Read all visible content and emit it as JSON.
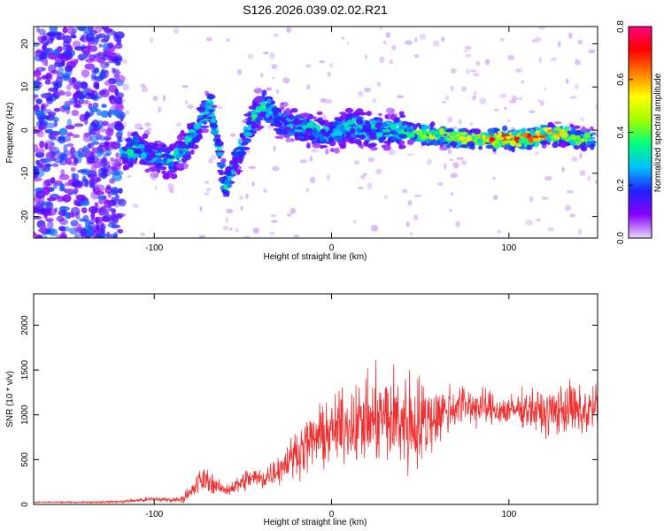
{
  "title": "S126.2026.039.02.02.R21",
  "colors": {
    "snr_line": "#f03030",
    "axis": "#000000",
    "background": "#ffffff"
  },
  "chart_data": [
    {
      "type": "heatmap",
      "name": "spectrogram",
      "title": "S126.2026.039.02.02.R21",
      "xlabel": "Height of straight line (km)",
      "ylabel": "Frequency (Hz)",
      "xlim": [
        -168,
        150
      ],
      "ylim": [
        -25,
        24
      ],
      "xticks": [
        -100,
        0,
        100
      ],
      "yticks": [
        -20,
        -10,
        0,
        10,
        20
      ],
      "colorbar": {
        "label": "Normalized spectral amplitude",
        "range": [
          0.0,
          0.8
        ],
        "ticks": [
          0.0,
          0.2,
          0.4,
          0.6,
          0.8
        ],
        "colormap": [
          "#e8d8f8",
          "#8800ff",
          "#2020ff",
          "#00c0ff",
          "#00ff80",
          "#a0ff00",
          "#ffff00",
          "#ff8000",
          "#ff0000",
          "#ff0080"
        ]
      },
      "ridge": [
        {
          "x": -118,
          "y": -6,
          "amp": 0.35
        },
        {
          "x": -110,
          "y": -4,
          "amp": 0.35
        },
        {
          "x": -100,
          "y": -6,
          "amp": 0.3
        },
        {
          "x": -90,
          "y": -7,
          "amp": 0.35
        },
        {
          "x": -82,
          "y": -4,
          "amp": 0.35
        },
        {
          "x": -75,
          "y": 1,
          "amp": 0.35
        },
        {
          "x": -68,
          "y": 6,
          "amp": 0.4
        },
        {
          "x": -60,
          "y": -13,
          "amp": 0.35
        },
        {
          "x": -52,
          "y": -5,
          "amp": 0.35
        },
        {
          "x": -45,
          "y": 2,
          "amp": 0.35
        },
        {
          "x": -38,
          "y": 6,
          "amp": 0.35
        },
        {
          "x": -30,
          "y": 2,
          "amp": 0.3
        },
        {
          "x": -20,
          "y": 1,
          "amp": 0.3
        },
        {
          "x": -10,
          "y": 0,
          "amp": 0.35
        },
        {
          "x": 0,
          "y": -1,
          "amp": 0.3
        },
        {
          "x": 10,
          "y": 1,
          "amp": 0.35
        },
        {
          "x": 20,
          "y": 0,
          "amp": 0.35
        },
        {
          "x": 30,
          "y": 0,
          "amp": 0.35
        },
        {
          "x": 40,
          "y": 0,
          "amp": 0.4
        },
        {
          "x": 50,
          "y": -1,
          "amp": 0.5
        },
        {
          "x": 60,
          "y": -1,
          "amp": 0.55
        },
        {
          "x": 70,
          "y": -2,
          "amp": 0.55
        },
        {
          "x": 80,
          "y": -2,
          "amp": 0.6
        },
        {
          "x": 90,
          "y": -2,
          "amp": 0.7
        },
        {
          "x": 100,
          "y": -2,
          "amp": 0.8
        },
        {
          "x": 110,
          "y": -2,
          "amp": 0.7
        },
        {
          "x": 120,
          "y": -1,
          "amp": 0.7
        },
        {
          "x": 130,
          "y": -1,
          "amp": 0.6
        },
        {
          "x": 140,
          "y": -2,
          "amp": 0.5
        },
        {
          "x": 148,
          "y": -2,
          "amp": 0.4
        }
      ]
    },
    {
      "type": "line",
      "name": "snr",
      "xlabel": "Height of straight line (km)",
      "ylabel": "SNR (10 * v/v)",
      "xlim": [
        -168,
        150
      ],
      "ylim": [
        0,
        2350
      ],
      "xticks": [
        -100,
        0,
        100
      ],
      "yticks": [
        0,
        500,
        1000,
        1500,
        2000
      ],
      "envelope": {
        "x": [
          -168,
          -140,
          -120,
          -110,
          -100,
          -90,
          -85,
          -80,
          -75,
          -70,
          -65,
          -60,
          -55,
          -50,
          -45,
          -40,
          -35,
          -30,
          -25,
          -20,
          -15,
          -10,
          -5,
          0,
          5,
          10,
          15,
          20,
          25,
          30,
          35,
          40,
          45,
          50,
          55,
          60,
          65,
          70,
          75,
          80,
          85,
          90,
          95,
          100,
          105,
          110,
          115,
          120,
          125,
          130,
          135,
          140,
          145,
          150
        ],
        "mean": [
          25,
          25,
          30,
          45,
          60,
          50,
          60,
          110,
          250,
          280,
          200,
          160,
          200,
          250,
          300,
          280,
          330,
          400,
          480,
          580,
          650,
          720,
          780,
          800,
          860,
          900,
          900,
          920,
          950,
          960,
          950,
          940,
          920,
          900,
          950,
          1000,
          1050,
          1100,
          1120,
          1100,
          1080,
          1070,
          1050,
          1040,
          1060,
          1080,
          1050,
          1000,
          1040,
          1060,
          1080,
          1000,
          1050,
          1100
        ],
        "amp": [
          15,
          15,
          20,
          40,
          50,
          40,
          60,
          160,
          250,
          230,
          150,
          100,
          150,
          200,
          220,
          230,
          250,
          280,
          350,
          420,
          480,
          550,
          600,
          600,
          650,
          700,
          750,
          800,
          850,
          900,
          950,
          1000,
          1050,
          900,
          700,
          550,
          500,
          450,
          400,
          380,
          350,
          330,
          300,
          300,
          320,
          350,
          400,
          420,
          450,
          480,
          500,
          520,
          500,
          450
        ]
      }
    }
  ]
}
